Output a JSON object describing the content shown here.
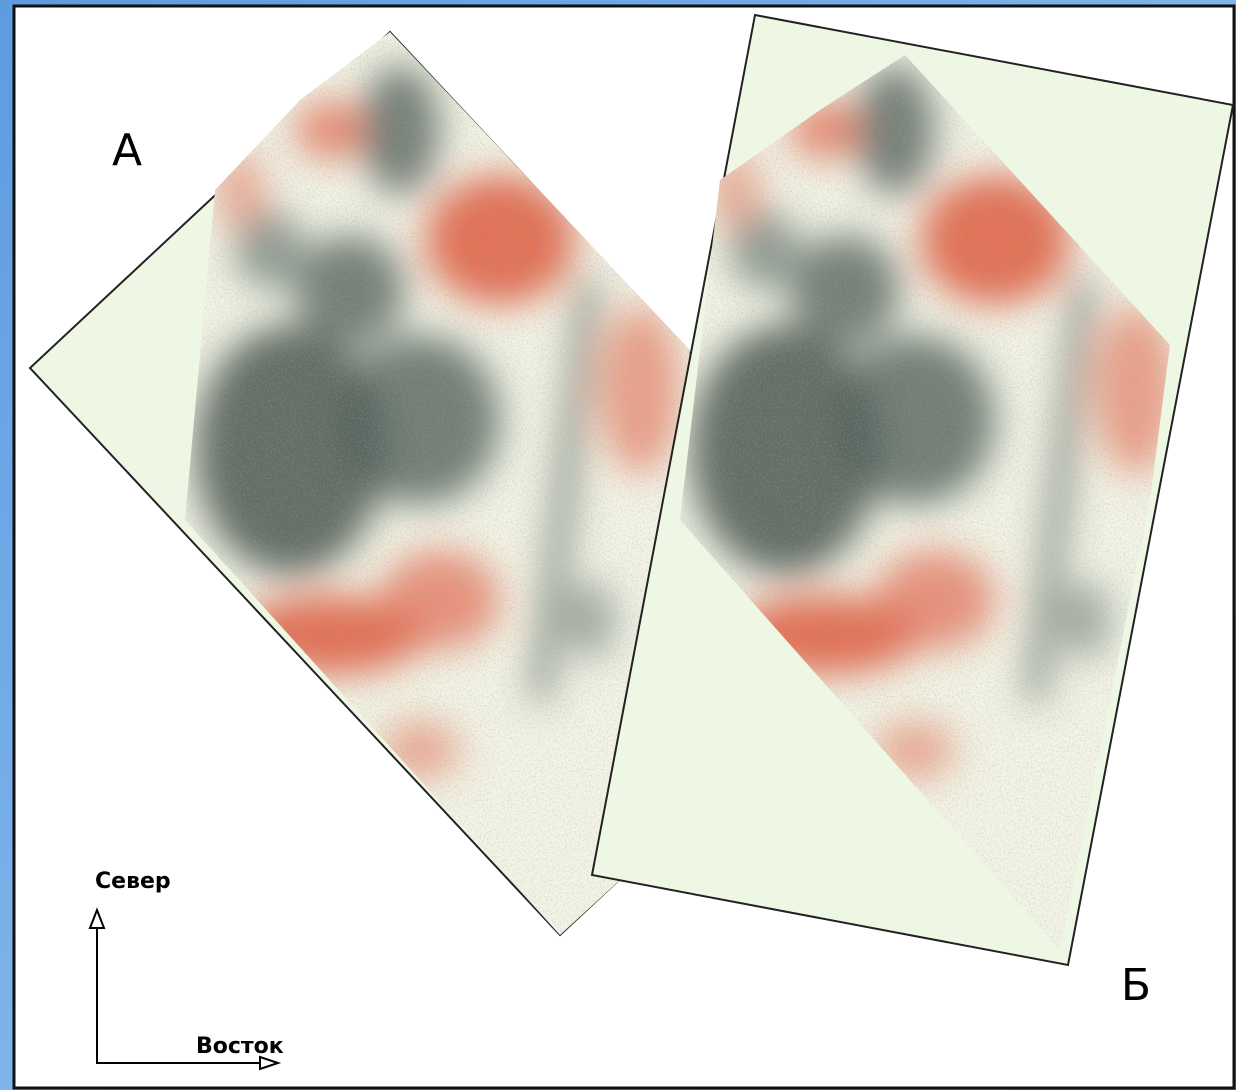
{
  "labels": {
    "panel_a": "А",
    "panel_b": "Б",
    "north": "Север",
    "east": "Восток"
  }
}
